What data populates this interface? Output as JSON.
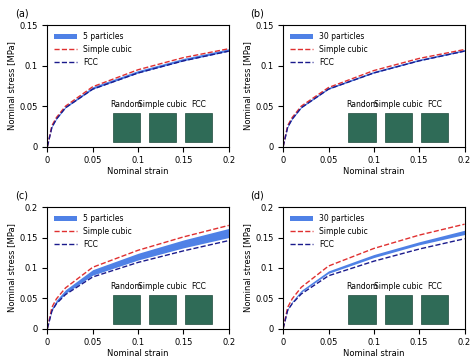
{
  "chart_data": [
    {
      "type": "line",
      "title": "(a)",
      "x_label": "Nominal strain",
      "y_label": "Nominal stress [MPa]",
      "x": [
        0,
        0.005,
        0.01,
        0.02,
        0.05,
        0.1,
        0.15,
        0.2
      ],
      "xlim": [
        0,
        0.2
      ],
      "xticks": [
        0,
        0.05,
        0.1,
        0.15,
        0.2
      ],
      "ylim": [
        0,
        0.15
      ],
      "yticks": [
        0,
        0.05,
        0.1,
        0.15
      ],
      "legend": "upper left",
      "annotations": [
        "Random",
        "Simple cubic",
        "FCC"
      ],
      "series": [
        {
          "name": "5 particles",
          "type": "band",
          "color": "#4f81e6",
          "lower": [
            0,
            0.024,
            0.034,
            0.048,
            0.071,
            0.091,
            0.106,
            0.118
          ],
          "upper": [
            0,
            0.026,
            0.036,
            0.05,
            0.074,
            0.094,
            0.109,
            0.121
          ]
        },
        {
          "name": "Simple cubic",
          "type": "line",
          "color": "#e03030",
          "line_style": "dashed",
          "values": [
            0,
            0.026,
            0.036,
            0.05,
            0.074,
            0.095,
            0.11,
            0.121
          ]
        },
        {
          "name": "FCC",
          "type": "line",
          "color": "#1a1a8c",
          "line_style": "dashed",
          "values": [
            0,
            0.024,
            0.034,
            0.048,
            0.071,
            0.091,
            0.106,
            0.118
          ]
        }
      ]
    },
    {
      "type": "line",
      "title": "(b)",
      "x_label": "Nominal strain",
      "y_label": "Nominal stress [MPa]",
      "x": [
        0,
        0.005,
        0.01,
        0.02,
        0.05,
        0.1,
        0.15,
        0.2
      ],
      "xlim": [
        0,
        0.2
      ],
      "xticks": [
        0,
        0.05,
        0.1,
        0.15,
        0.2
      ],
      "ylim": [
        0,
        0.15
      ],
      "yticks": [
        0,
        0.05,
        0.1,
        0.15
      ],
      "legend": "upper left",
      "annotations": [
        "Random",
        "Simple cubic",
        "FCC"
      ],
      "series": [
        {
          "name": "30 particles",
          "type": "band",
          "color": "#4f81e6",
          "lower": [
            0,
            0.024,
            0.034,
            0.048,
            0.071,
            0.091,
            0.106,
            0.118
          ],
          "upper": [
            0,
            0.026,
            0.036,
            0.05,
            0.073,
            0.093,
            0.108,
            0.12
          ]
        },
        {
          "name": "Simple cubic",
          "type": "line",
          "color": "#e03030",
          "line_style": "dashed",
          "values": [
            0,
            0.026,
            0.036,
            0.05,
            0.073,
            0.094,
            0.109,
            0.12
          ]
        },
        {
          "name": "FCC",
          "type": "line",
          "color": "#1a1a8c",
          "line_style": "dashed",
          "values": [
            0,
            0.024,
            0.034,
            0.048,
            0.071,
            0.091,
            0.106,
            0.118
          ]
        }
      ]
    },
    {
      "type": "line",
      "title": "(c)",
      "x_label": "Nominal strain",
      "y_label": "Nominal stress [MPa]",
      "x": [
        0,
        0.005,
        0.01,
        0.02,
        0.05,
        0.1,
        0.15,
        0.2
      ],
      "xlim": [
        0,
        0.2
      ],
      "xticks": [
        0,
        0.05,
        0.1,
        0.15,
        0.2
      ],
      "ylim": [
        0,
        0.2
      ],
      "yticks": [
        0,
        0.05,
        0.1,
        0.15,
        0.2
      ],
      "legend": "upper left",
      "annotations": [
        "Random",
        "Simple cubic",
        "FCC"
      ],
      "series": [
        {
          "name": "5 particles",
          "type": "band",
          "color": "#4f81e6",
          "lower": [
            0,
            0.03,
            0.042,
            0.058,
            0.088,
            0.113,
            0.133,
            0.15
          ],
          "upper": [
            0,
            0.034,
            0.047,
            0.064,
            0.097,
            0.124,
            0.146,
            0.165
          ]
        },
        {
          "name": "Simple cubic",
          "type": "line",
          "color": "#e03030",
          "line_style": "dashed",
          "values": [
            0,
            0.035,
            0.049,
            0.067,
            0.101,
            0.129,
            0.151,
            0.17
          ]
        },
        {
          "name": "FCC",
          "type": "line",
          "color": "#1a1a8c",
          "line_style": "dashed",
          "values": [
            0,
            0.029,
            0.041,
            0.056,
            0.085,
            0.109,
            0.128,
            0.145
          ]
        }
      ]
    },
    {
      "type": "line",
      "title": "(d)",
      "x_label": "Nominal strain",
      "y_label": "Nominal stress [MPa]",
      "x": [
        0,
        0.005,
        0.01,
        0.02,
        0.05,
        0.1,
        0.15,
        0.2
      ],
      "xlim": [
        0,
        0.2
      ],
      "xticks": [
        0,
        0.05,
        0.1,
        0.15,
        0.2
      ],
      "ylim": [
        0,
        0.2
      ],
      "yticks": [
        0,
        0.05,
        0.1,
        0.15,
        0.2
      ],
      "legend": "upper left",
      "annotations": [
        "Random",
        "Simple cubic",
        "FCC"
      ],
      "series": [
        {
          "name": "30 particles",
          "type": "band",
          "color": "#4f81e6",
          "lower": [
            0,
            0.031,
            0.043,
            0.06,
            0.091,
            0.117,
            0.138,
            0.155
          ],
          "upper": [
            0,
            0.033,
            0.045,
            0.063,
            0.095,
            0.122,
            0.143,
            0.162
          ]
        },
        {
          "name": "Simple cubic",
          "type": "line",
          "color": "#e03030",
          "line_style": "dashed",
          "values": [
            0,
            0.035,
            0.049,
            0.068,
            0.103,
            0.132,
            0.154,
            0.172
          ]
        },
        {
          "name": "FCC",
          "type": "line",
          "color": "#1a1a8c",
          "line_style": "dashed",
          "values": [
            0,
            0.03,
            0.041,
            0.057,
            0.087,
            0.111,
            0.131,
            0.148
          ]
        }
      ]
    }
  ]
}
